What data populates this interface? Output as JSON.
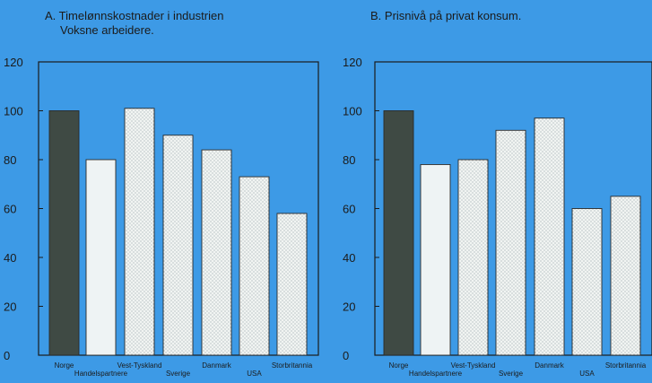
{
  "chart_data": [
    {
      "type": "bar",
      "title": "A. Timelønnskostnader i industrien",
      "subtitle": "Voksne arbeidere.",
      "categories": [
        "Norge",
        "Handelspartnere",
        "Vest-Tyskland",
        "Sverige",
        "Danmark",
        "USA",
        "Storbritannia"
      ],
      "values": [
        100,
        80,
        101,
        90,
        84,
        73,
        58
      ],
      "ylim": [
        0,
        120
      ],
      "yticks": [
        "0",
        "20",
        "40",
        "60",
        "80",
        "100",
        "120"
      ],
      "xlabel": "",
      "ylabel": "",
      "grid": false
    },
    {
      "type": "bar",
      "title": "B. Prisnivå på privat konsum.",
      "subtitle": "",
      "categories": [
        "Norge",
        "Handelspartnere",
        "Vest-Tyskland",
        "Sverige",
        "Danmark",
        "USA",
        "Storbritannia"
      ],
      "values": [
        100,
        78,
        80,
        92,
        97,
        60,
        65
      ],
      "ylim": [
        0,
        120
      ],
      "yticks": [
        "0",
        "20",
        "40",
        "60",
        "80",
        "100",
        "120"
      ],
      "xlabel": "",
      "ylabel": "",
      "grid": false
    }
  ],
  "colors": {
    "background": "#3d9ae6",
    "plot_area": "#3d9ae6",
    "norway_bar": "#3f4a44",
    "partner_bar": "#eef3f4",
    "other_bar": "#f1f4f2",
    "axis": "#1b1b1b"
  }
}
